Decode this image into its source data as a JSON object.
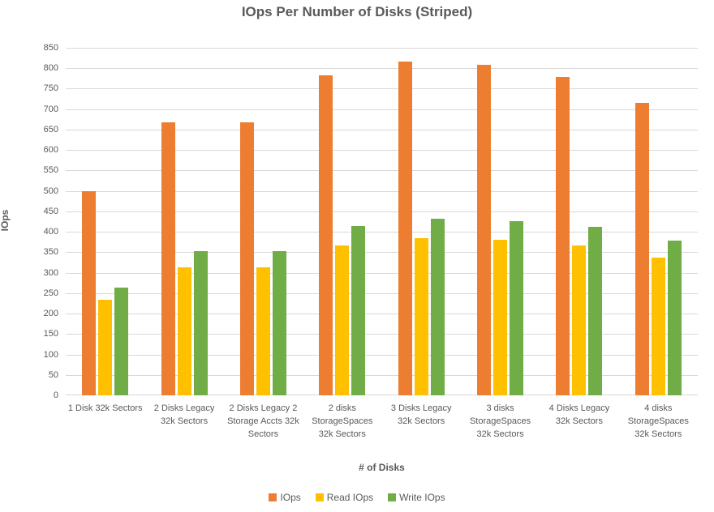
{
  "chart_data": {
    "type": "bar",
    "title": "IOps Per Number of Disks (Striped)",
    "xlabel": "# of Disks",
    "ylabel": "IOps",
    "ylim": [
      0,
      850
    ],
    "ytick_step": 50,
    "grid": true,
    "legend_position": "bottom",
    "background_color": "#ffffff",
    "gridline_color": "#d9d9d9",
    "text_color": "#595959",
    "categories": [
      "1 Disk 32k Sectors",
      "2 Disks Legacy 32k Sectors",
      "2 Disks Legacy 2 Storage Accts 32k Sectors",
      "2 disks StorageSpaces 32k Sectors",
      "3 Disks Legacy 32k Sectors",
      "3 disks StorageSpaces 32k Sectors",
      "4 Disks Legacy 32k Sectors",
      "4 disks StorageSpaces 32k Sectors"
    ],
    "series": [
      {
        "name": "IOps",
        "color": "#ED7D31",
        "values": [
          500,
          667,
          667,
          782,
          817,
          809,
          778,
          716
        ]
      },
      {
        "name": "Read IOps",
        "color": "#FFC000",
        "values": [
          233,
          313,
          313,
          366,
          384,
          380,
          366,
          337
        ]
      },
      {
        "name": "Write IOps",
        "color": "#70AD47",
        "values": [
          263,
          352,
          352,
          414,
          433,
          427,
          412,
          378
        ]
      }
    ]
  }
}
